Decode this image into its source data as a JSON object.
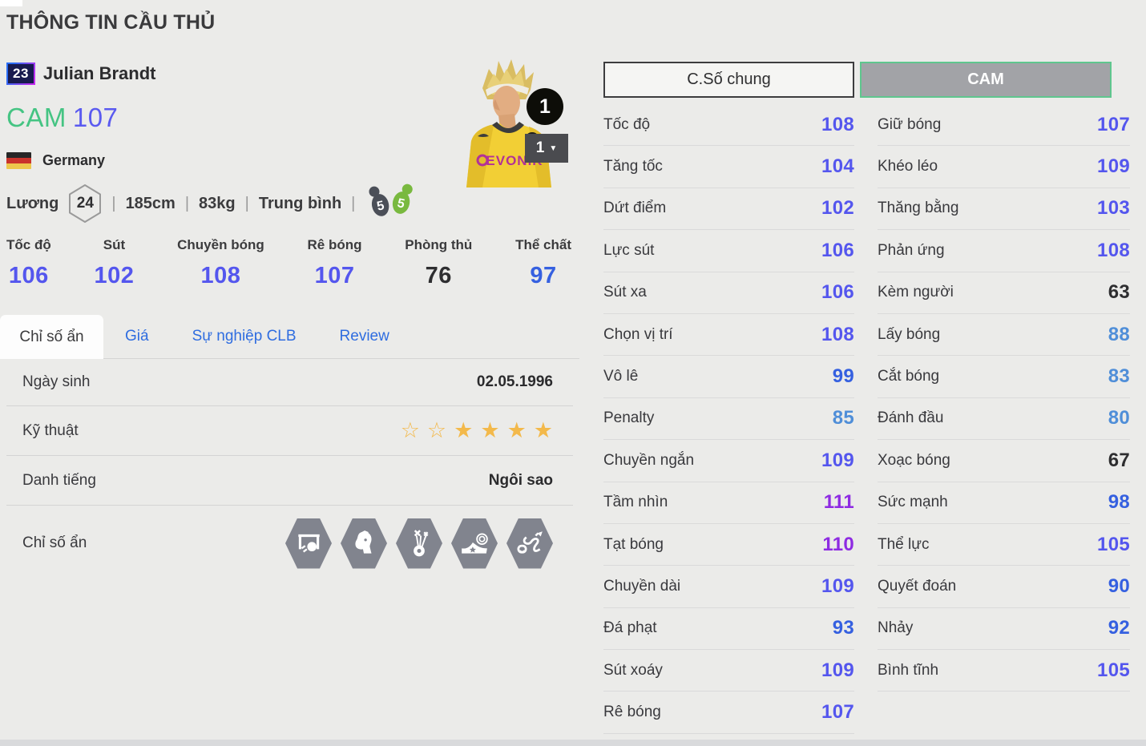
{
  "page": {
    "title": "THÔNG TIN CẦU THỦ"
  },
  "player": {
    "jersey_number": "23",
    "name": "Julian Brandt",
    "position": "CAM",
    "ovr": "107",
    "nation": "Germany",
    "salary_label": "Lương",
    "salary": "24",
    "height": "185cm",
    "weight": "83kg",
    "body_type": "Trung bình",
    "weak_foot": "5",
    "strong_foot": "5",
    "jersey_sponsor": "EVONIK",
    "level_badge": "1",
    "level_select": "1"
  },
  "main_stats": [
    {
      "label": "Tốc độ",
      "value": "106"
    },
    {
      "label": "Sút",
      "value": "102"
    },
    {
      "label": "Chuyền bóng",
      "value": "108"
    },
    {
      "label": "Rê bóng",
      "value": "107"
    },
    {
      "label": "Phòng thủ",
      "value": "76"
    },
    {
      "label": "Thể chất",
      "value": "97"
    }
  ],
  "tabs": [
    {
      "label": "Chỉ số ẩn",
      "active": true
    },
    {
      "label": "Giá",
      "active": false
    },
    {
      "label": "Sự nghiệp CLB",
      "active": false
    },
    {
      "label": "Review",
      "active": false
    }
  ],
  "info_rows": {
    "birth": {
      "label": "Ngày sinh",
      "value": "02.05.1996"
    },
    "skill": {
      "label": "Kỹ thuật",
      "stars": [
        "empty",
        "empty",
        "filled",
        "filled",
        "filled",
        "filled"
      ]
    },
    "fame": {
      "label": "Danh tiếng",
      "value": "Ngôi sao"
    },
    "hidden": {
      "label": "Chỉ số ẩn",
      "icons": [
        "goal-shot-icon",
        "header-icon",
        "juggling-icon",
        "finesse-boot-icon",
        "trickster-run-icon"
      ]
    }
  },
  "panel": {
    "buttons": {
      "general": "C.Số chung",
      "position": "CAM"
    },
    "left_stats": [
      {
        "label": "Tốc độ",
        "value": "108"
      },
      {
        "label": "Tăng tốc",
        "value": "104"
      },
      {
        "label": "Dứt điểm",
        "value": "102"
      },
      {
        "label": "Lực sút",
        "value": "106"
      },
      {
        "label": "Sút xa",
        "value": "106"
      },
      {
        "label": "Chọn vị trí",
        "value": "108"
      },
      {
        "label": "Vô lê",
        "value": "99"
      },
      {
        "label": "Penalty",
        "value": "85"
      },
      {
        "label": "Chuyền ngắn",
        "value": "109"
      },
      {
        "label": "Tầm nhìn",
        "value": "111"
      },
      {
        "label": "Tạt bóng",
        "value": "110"
      },
      {
        "label": "Chuyền dài",
        "value": "109"
      },
      {
        "label": "Đá phạt",
        "value": "93"
      },
      {
        "label": "Sút xoáy",
        "value": "109"
      },
      {
        "label": "Rê bóng",
        "value": "107"
      }
    ],
    "right_stats": [
      {
        "label": "Giữ bóng",
        "value": "107"
      },
      {
        "label": "Khéo léo",
        "value": "109"
      },
      {
        "label": "Thăng bằng",
        "value": "103"
      },
      {
        "label": "Phản ứng",
        "value": "108"
      },
      {
        "label": "Kèm người",
        "value": "63"
      },
      {
        "label": "Lấy bóng",
        "value": "88"
      },
      {
        "label": "Cắt bóng",
        "value": "83"
      },
      {
        "label": "Đánh đầu",
        "value": "80"
      },
      {
        "label": "Xoạc bóng",
        "value": "67"
      },
      {
        "label": "Sức mạnh",
        "value": "98"
      },
      {
        "label": "Thể lực",
        "value": "105"
      },
      {
        "label": "Quyết đoán",
        "value": "90"
      },
      {
        "label": "Nhảy",
        "value": "92"
      },
      {
        "label": "Bình tĩnh",
        "value": "105"
      }
    ]
  },
  "colors": {
    "accent_position": "#45c483",
    "accent_ovr": "#5a5af0",
    "tier_violet": "#8e2be2",
    "tier_indigo": "#5456ee",
    "tier_blue": "#3560e0",
    "tier_light_blue": "#4f8ed8",
    "tier_dark": "#2e2e30",
    "star_gold": "#f3b94b",
    "cam_button_border": "#5fc68e"
  }
}
